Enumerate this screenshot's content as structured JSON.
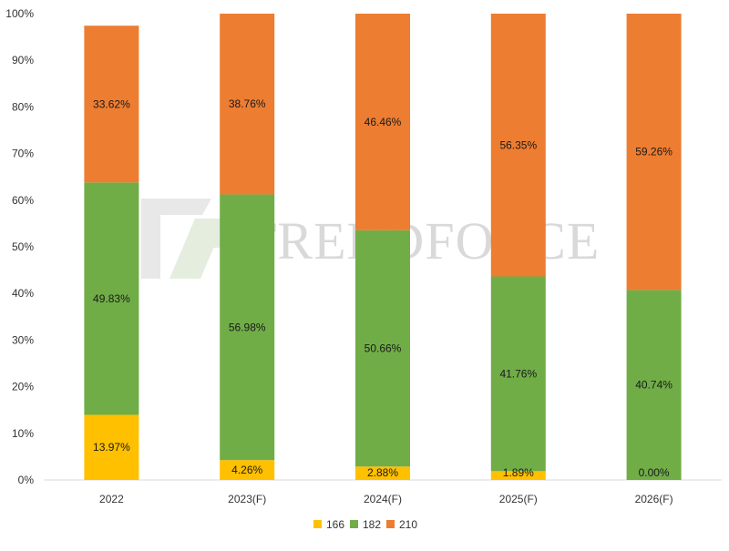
{
  "chart_data": {
    "type": "bar",
    "stacked": true,
    "categories": [
      "2022",
      "2023(F)",
      "2024(F)",
      "2025(F)",
      "2026(F)"
    ],
    "series": [
      {
        "name": "166",
        "color": "#FFC000",
        "values": [
          13.97,
          4.26,
          2.88,
          1.89,
          0.0
        ],
        "labels": [
          "13.97%",
          "4.26%",
          "2.88%",
          "1.89%",
          "0.00%"
        ]
      },
      {
        "name": "182",
        "color": "#70AD47",
        "values": [
          49.83,
          56.98,
          50.66,
          41.76,
          40.74
        ],
        "labels": [
          "49.83%",
          "56.98%",
          "50.66%",
          "41.76%",
          "40.74%"
        ]
      },
      {
        "name": "210",
        "color": "#ED7D31",
        "values": [
          33.62,
          38.76,
          46.46,
          56.35,
          59.26
        ],
        "labels": [
          "33.62%",
          "38.76%",
          "46.46%",
          "56.35%",
          "59.26%"
        ]
      }
    ],
    "y_ticks": [
      "0%",
      "10%",
      "20%",
      "30%",
      "40%",
      "50%",
      "60%",
      "70%",
      "80%",
      "90%",
      "100%"
    ],
    "ylim": [
      0,
      100
    ],
    "grid": false,
    "legend_position": "bottom"
  },
  "watermark": {
    "text": "TRENDFORCE"
  }
}
